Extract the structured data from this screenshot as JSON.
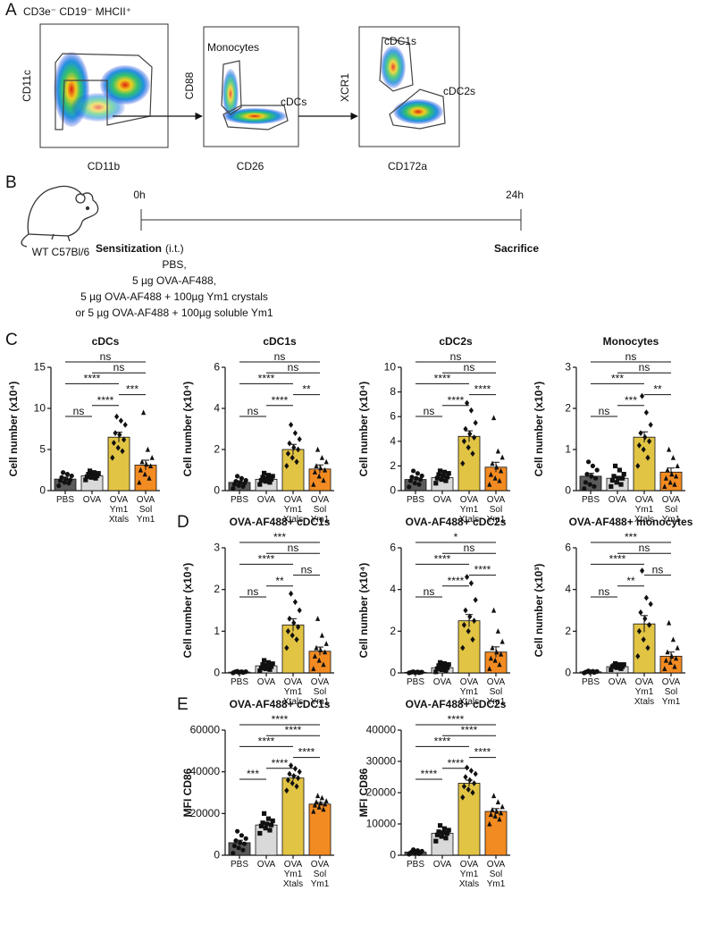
{
  "panel_a": {
    "letter": "A",
    "gate_title": "CD3e⁻ CD19⁻ MHCII⁺",
    "plot1": {
      "y_label": "CD11c",
      "x_label": "CD11b"
    },
    "plot2": {
      "y_label": "CD88",
      "x_label": "CD26",
      "gate1": "Monocytes",
      "gate2": "cDCs"
    },
    "plot3": {
      "y_label": "XCR1",
      "x_label": "CD172a",
      "gate1": "cDC1s",
      "gate2": "cDC2s"
    }
  },
  "panel_b": {
    "letter": "B",
    "mouse": "WT C57Bl/6",
    "start": "0h",
    "end": "24h",
    "step_title": "Sensitization",
    "route": "(i.t.)",
    "end_step": "Sacrifice",
    "treatments": [
      "PBS,",
      "5 µg OVA-AF488,",
      "5 µg OVA-AF488 + 100µg Ym1 crystals",
      "or 5 µg OVA-AF488 + 100µg soluble Ym1"
    ]
  },
  "panel_c": {
    "letter": "C"
  },
  "panel_d": {
    "letter": "D"
  },
  "panel_e": {
    "letter": "E"
  },
  "chart_data": [
    {
      "type": "bar",
      "title": "cDCs",
      "y_label": "Cell number (x10⁴)",
      "categories": [
        "PBS",
        "OVA",
        "OVA\nYm1\nXtals",
        "OVA\nSol\nYm1"
      ],
      "colors": [
        "#5b5b5b",
        "#d9d9d9",
        "#e2c445",
        "#f28b22"
      ],
      "markers": [
        "circle",
        "square",
        "diamond",
        "triangle"
      ],
      "values": [
        1.4,
        1.8,
        6.5,
        3.1
      ],
      "errors": [
        0.25,
        0.2,
        0.6,
        0.6
      ],
      "points": [
        [
          0.6,
          0.9,
          1.0,
          1.2,
          1.3,
          1.4,
          1.6,
          1.8,
          2.0,
          2.2
        ],
        [
          1.3,
          1.5,
          1.6,
          1.7,
          1.8,
          1.9,
          2.0,
          2.1,
          2.2,
          2.4
        ],
        [
          4.0,
          4.8,
          5.2,
          5.8,
          6.2,
          6.8,
          7.0,
          8.0,
          8.5,
          9.0
        ],
        [
          1.0,
          1.5,
          2.0,
          2.5,
          3.0,
          3.2,
          3.5,
          4.0,
          5.0,
          9.5
        ]
      ],
      "ylim": [
        0,
        15
      ],
      "yticks": [
        0,
        5,
        10,
        15
      ],
      "comparisons": [
        {
          "from": 0,
          "to": 3,
          "label": "ns"
        },
        {
          "from": 1,
          "to": 3,
          "label": "ns"
        },
        {
          "from": 0,
          "to": 2,
          "label": "****"
        },
        {
          "from": 2,
          "to": 3,
          "label": "***"
        },
        {
          "from": 1,
          "to": 2,
          "label": "****"
        },
        {
          "from": 0,
          "to": 1,
          "label": "ns"
        }
      ]
    },
    {
      "type": "bar",
      "title": "cDC1s",
      "y_label": "Cell number (x10⁴)",
      "categories": [
        "PBS",
        "OVA",
        "OVA\nYm1\nXtals",
        "OVA\nSol\nYm1"
      ],
      "colors": [
        "#5b5b5b",
        "#d9d9d9",
        "#e2c445",
        "#f28b22"
      ],
      "markers": [
        "circle",
        "square",
        "diamond",
        "triangle"
      ],
      "values": [
        0.4,
        0.55,
        2.0,
        1.05
      ],
      "errors": [
        0.08,
        0.08,
        0.25,
        0.2
      ],
      "points": [
        [
          0.1,
          0.2,
          0.25,
          0.3,
          0.35,
          0.4,
          0.45,
          0.5,
          0.6,
          0.7
        ],
        [
          0.3,
          0.4,
          0.45,
          0.5,
          0.55,
          0.6,
          0.65,
          0.7,
          0.75,
          0.85
        ],
        [
          1.2,
          1.4,
          1.6,
          1.8,
          2.0,
          2.1,
          2.3,
          2.5,
          2.8,
          3.2
        ],
        [
          0.3,
          0.5,
          0.7,
          0.9,
          1.0,
          1.1,
          1.2,
          1.4,
          1.6,
          2.0
        ]
      ],
      "ylim": [
        0,
        6
      ],
      "yticks": [
        0,
        2,
        4,
        6
      ],
      "comparisons": [
        {
          "from": 0,
          "to": 3,
          "label": "ns"
        },
        {
          "from": 1,
          "to": 3,
          "label": "ns"
        },
        {
          "from": 0,
          "to": 2,
          "label": "****"
        },
        {
          "from": 2,
          "to": 3,
          "label": "**"
        },
        {
          "from": 1,
          "to": 2,
          "label": "****"
        },
        {
          "from": 0,
          "to": 1,
          "label": "ns"
        }
      ]
    },
    {
      "type": "bar",
      "title": "cDC2s",
      "y_label": "Cell number (x10⁴)",
      "categories": [
        "PBS",
        "OVA",
        "OVA\nYm1\nXtals",
        "OVA\nSol\nYm1"
      ],
      "colors": [
        "#5b5b5b",
        "#d9d9d9",
        "#e2c445",
        "#f28b22"
      ],
      "markers": [
        "circle",
        "square",
        "diamond",
        "triangle"
      ],
      "values": [
        0.9,
        1.05,
        4.4,
        1.9
      ],
      "errors": [
        0.15,
        0.12,
        0.45,
        0.4
      ],
      "points": [
        [
          0.3,
          0.5,
          0.6,
          0.8,
          0.9,
          1.0,
          1.1,
          1.2,
          1.4,
          1.6
        ],
        [
          0.6,
          0.8,
          0.9,
          1.0,
          1.1,
          1.2,
          1.3,
          1.4,
          1.5,
          1.6
        ],
        [
          2.2,
          3.0,
          3.5,
          4.0,
          4.3,
          4.6,
          5.0,
          5.5,
          6.5,
          7.1
        ],
        [
          0.5,
          0.8,
          1.0,
          1.3,
          1.6,
          1.9,
          2.2,
          2.7,
          3.2,
          5.9
        ]
      ],
      "ylim": [
        0,
        10
      ],
      "yticks": [
        0,
        2,
        4,
        6,
        8,
        10
      ],
      "comparisons": [
        {
          "from": 0,
          "to": 3,
          "label": "ns"
        },
        {
          "from": 1,
          "to": 3,
          "label": "ns"
        },
        {
          "from": 0,
          "to": 2,
          "label": "****"
        },
        {
          "from": 2,
          "to": 3,
          "label": "****"
        },
        {
          "from": 1,
          "to": 2,
          "label": "****"
        },
        {
          "from": 0,
          "to": 1,
          "label": "ns"
        }
      ]
    },
    {
      "type": "bar",
      "title": "Monocytes",
      "y_label": "Cell number (x10⁴)",
      "categories": [
        "PBS",
        "OVA",
        "OVA\nYm1\nXtals",
        "OVA\nSol\nYm1"
      ],
      "colors": [
        "#5b5b5b",
        "#d9d9d9",
        "#e2c445",
        "#f28b22"
      ],
      "markers": [
        "circle",
        "square",
        "diamond",
        "triangle"
      ],
      "values": [
        0.35,
        0.3,
        1.3,
        0.45
      ],
      "errors": [
        0.07,
        0.05,
        0.13,
        0.1
      ],
      "points": [
        [
          0.05,
          0.1,
          0.15,
          0.2,
          0.3,
          0.35,
          0.4,
          0.5,
          0.6,
          0.7
        ],
        [
          0.1,
          0.15,
          0.2,
          0.25,
          0.3,
          0.3,
          0.35,
          0.4,
          0.5,
          0.6
        ],
        [
          0.6,
          0.8,
          1.0,
          1.1,
          1.2,
          1.3,
          1.4,
          1.6,
          1.9,
          2.3
        ],
        [
          0.1,
          0.15,
          0.2,
          0.3,
          0.35,
          0.4,
          0.5,
          0.6,
          0.8,
          1.0
        ]
      ],
      "ylim": [
        0,
        3
      ],
      "yticks": [
        0,
        1,
        2,
        3
      ],
      "comparisons": [
        {
          "from": 0,
          "to": 3,
          "label": "ns"
        },
        {
          "from": 1,
          "to": 3,
          "label": "ns"
        },
        {
          "from": 0,
          "to": 2,
          "label": "***"
        },
        {
          "from": 2,
          "to": 3,
          "label": "**"
        },
        {
          "from": 1,
          "to": 2,
          "label": "***"
        },
        {
          "from": 0,
          "to": 1,
          "label": "ns"
        }
      ]
    },
    {
      "type": "bar",
      "title": "OVA-AF488+ cDC1s",
      "y_label": "Cell number (x10⁴)",
      "categories": [
        "PBS",
        "OVA",
        "OVA\nYm1\nXtals",
        "OVA\nSol\nYm1"
      ],
      "colors": [
        "#5b5b5b",
        "#d9d9d9",
        "#e2c445",
        "#f28b22"
      ],
      "markers": [
        "circle",
        "square",
        "diamond",
        "triangle"
      ],
      "values": [
        0.02,
        0.17,
        1.15,
        0.52
      ],
      "errors": [
        0.005,
        0.03,
        0.15,
        0.1
      ],
      "points": [
        [
          0.0,
          0.01,
          0.01,
          0.02,
          0.02,
          0.02,
          0.03,
          0.03,
          0.03,
          0.04
        ],
        [
          0.05,
          0.08,
          0.1,
          0.12,
          0.15,
          0.18,
          0.2,
          0.22,
          0.25,
          0.3
        ],
        [
          0.6,
          0.8,
          0.9,
          1.0,
          1.1,
          1.2,
          1.3,
          1.5,
          1.7,
          1.9
        ],
        [
          0.1,
          0.2,
          0.3,
          0.4,
          0.5,
          0.55,
          0.6,
          0.7,
          0.9,
          1.3
        ]
      ],
      "ylim": [
        0,
        3
      ],
      "yticks": [
        0,
        1,
        2,
        3
      ],
      "comparisons": [
        {
          "from": 0,
          "to": 3,
          "label": "***"
        },
        {
          "from": 1,
          "to": 3,
          "label": "ns"
        },
        {
          "from": 0,
          "to": 2,
          "label": "****"
        },
        {
          "from": 2,
          "to": 3,
          "label": "ns"
        },
        {
          "from": 1,
          "to": 2,
          "label": "**"
        },
        {
          "from": 0,
          "to": 1,
          "label": "ns"
        }
      ]
    },
    {
      "type": "bar",
      "title": "OVA-AF488+ cDC2s",
      "y_label": "Cell number (x10⁴)",
      "categories": [
        "PBS",
        "OVA",
        "OVA\nYm1\nXtals",
        "OVA\nSol\nYm1"
      ],
      "colors": [
        "#5b5b5b",
        "#d9d9d9",
        "#e2c445",
        "#f28b22"
      ],
      "markers": [
        "circle",
        "square",
        "diamond",
        "triangle"
      ],
      "values": [
        0.03,
        0.25,
        2.5,
        1.0
      ],
      "errors": [
        0.01,
        0.05,
        0.3,
        0.25
      ],
      "points": [
        [
          0.0,
          0.01,
          0.02,
          0.02,
          0.03,
          0.03,
          0.04,
          0.04,
          0.05,
          0.06
        ],
        [
          0.05,
          0.1,
          0.15,
          0.2,
          0.25,
          0.3,
          0.35,
          0.4,
          0.45,
          0.5
        ],
        [
          1.2,
          1.6,
          2.0,
          2.3,
          2.5,
          2.7,
          3.0,
          3.5,
          4.3,
          4.6
        ],
        [
          0.2,
          0.4,
          0.6,
          0.7,
          0.9,
          1.0,
          1.2,
          1.5,
          2.0,
          3.0
        ]
      ],
      "ylim": [
        0,
        6
      ],
      "yticks": [
        0,
        2,
        4,
        6
      ],
      "comparisons": [
        {
          "from": 0,
          "to": 3,
          "label": "*"
        },
        {
          "from": 1,
          "to": 3,
          "label": "ns"
        },
        {
          "from": 0,
          "to": 2,
          "label": "****"
        },
        {
          "from": 2,
          "to": 3,
          "label": "****"
        },
        {
          "from": 1,
          "to": 2,
          "label": "****"
        },
        {
          "from": 0,
          "to": 1,
          "label": "ns"
        }
      ]
    },
    {
      "type": "bar",
      "title": "OVA-AF488+ monocytes",
      "y_label": "Cell number (x10³)",
      "categories": [
        "PBS",
        "OVA",
        "OVA\nYm1\nXtals",
        "OVA\nSol\nYm1"
      ],
      "colors": [
        "#5b5b5b",
        "#d9d9d9",
        "#e2c445",
        "#f28b22"
      ],
      "markers": [
        "circle",
        "square",
        "diamond",
        "triangle"
      ],
      "values": [
        0.05,
        0.3,
        2.35,
        0.8
      ],
      "errors": [
        0.01,
        0.04,
        0.4,
        0.2
      ],
      "points": [
        [
          0.0,
          0.02,
          0.03,
          0.04,
          0.05,
          0.05,
          0.06,
          0.07,
          0.08,
          0.1
        ],
        [
          0.15,
          0.2,
          0.25,
          0.3,
          0.3,
          0.35,
          0.35,
          0.4,
          0.4,
          0.45
        ],
        [
          0.8,
          1.2,
          1.6,
          2.0,
          2.3,
          2.6,
          2.9,
          3.3,
          3.6,
          4.9
        ],
        [
          0.2,
          0.3,
          0.5,
          0.6,
          0.7,
          0.8,
          1.0,
          1.2,
          1.6,
          2.4
        ]
      ],
      "ylim": [
        0,
        6
      ],
      "yticks": [
        0,
        2,
        4,
        6
      ],
      "comparisons": [
        {
          "from": 0,
          "to": 3,
          "label": "***"
        },
        {
          "from": 1,
          "to": 3,
          "label": "ns"
        },
        {
          "from": 0,
          "to": 2,
          "label": "****"
        },
        {
          "from": 2,
          "to": 3,
          "label": "ns"
        },
        {
          "from": 1,
          "to": 2,
          "label": "**"
        },
        {
          "from": 0,
          "to": 1,
          "label": "ns"
        }
      ]
    },
    {
      "type": "bar",
      "title": "OVA-AF488+ cDC1s",
      "y_label": "MFI CD86",
      "categories": [
        "PBS",
        "OVA",
        "OVA\nYm1\nXtals",
        "OVA\nSol\nYm1"
      ],
      "colors": [
        "#5b5b5b",
        "#d9d9d9",
        "#e2c445",
        "#f28b22"
      ],
      "markers": [
        "circle",
        "square",
        "diamond",
        "triangle"
      ],
      "values": [
        6000,
        14500,
        37000,
        24500
      ],
      "errors": [
        1200,
        800,
        1200,
        800
      ],
      "points": [
        [
          1000,
          2500,
          3500,
          4500,
          5500,
          6000,
          7000,
          8000,
          9500,
          11500
        ],
        [
          10500,
          12000,
          13000,
          14000,
          14500,
          15000,
          15500,
          16500,
          17500,
          20000
        ],
        [
          31000,
          33000,
          34500,
          36000,
          37000,
          38000,
          39000,
          40000,
          41500,
          43000
        ],
        [
          21000,
          22000,
          23000,
          24000,
          24500,
          25000,
          25500,
          26000,
          27500,
          28500
        ]
      ],
      "ylim": [
        0,
        60000
      ],
      "yticks": [
        0,
        20000,
        40000,
        60000
      ],
      "comparisons": [
        {
          "from": 0,
          "to": 3,
          "label": "****"
        },
        {
          "from": 1,
          "to": 3,
          "label": "****"
        },
        {
          "from": 0,
          "to": 2,
          "label": "****"
        },
        {
          "from": 2,
          "to": 3,
          "label": "****"
        },
        {
          "from": 1,
          "to": 2,
          "label": "****"
        },
        {
          "from": 0,
          "to": 1,
          "label": "***"
        }
      ]
    },
    {
      "type": "bar",
      "title": "OVA-AF488+ cDC2s",
      "y_label": "MFI CD86",
      "categories": [
        "PBS",
        "OVA",
        "OVA\nYm1\nXtals",
        "OVA\nSol\nYm1"
      ],
      "colors": [
        "#5b5b5b",
        "#d9d9d9",
        "#e2c445",
        "#f28b22"
      ],
      "markers": [
        "circle",
        "square",
        "diamond",
        "triangle"
      ],
      "values": [
        1000,
        7000,
        23000,
        14000
      ],
      "errors": [
        200,
        600,
        1000,
        900
      ],
      "points": [
        [
          300,
          500,
          700,
          800,
          900,
          1000,
          1100,
          1300,
          1500,
          1800
        ],
        [
          4500,
          5500,
          6000,
          6500,
          7000,
          7200,
          7500,
          8000,
          8500,
          9500
        ],
        [
          18500,
          20000,
          21000,
          22000,
          23000,
          24000,
          25000,
          26000,
          27000,
          28000
        ],
        [
          10000,
          11500,
          12500,
          13000,
          13500,
          14000,
          14500,
          15500,
          17000,
          19000
        ]
      ],
      "ylim": [
        0,
        40000
      ],
      "yticks": [
        0,
        10000,
        20000,
        30000,
        40000
      ],
      "comparisons": [
        {
          "from": 0,
          "to": 3,
          "label": "****"
        },
        {
          "from": 1,
          "to": 3,
          "label": "****"
        },
        {
          "from": 0,
          "to": 2,
          "label": "****"
        },
        {
          "from": 2,
          "to": 3,
          "label": "****"
        },
        {
          "from": 1,
          "to": 2,
          "label": "****"
        },
        {
          "from": 0,
          "to": 1,
          "label": "****"
        }
      ]
    }
  ]
}
